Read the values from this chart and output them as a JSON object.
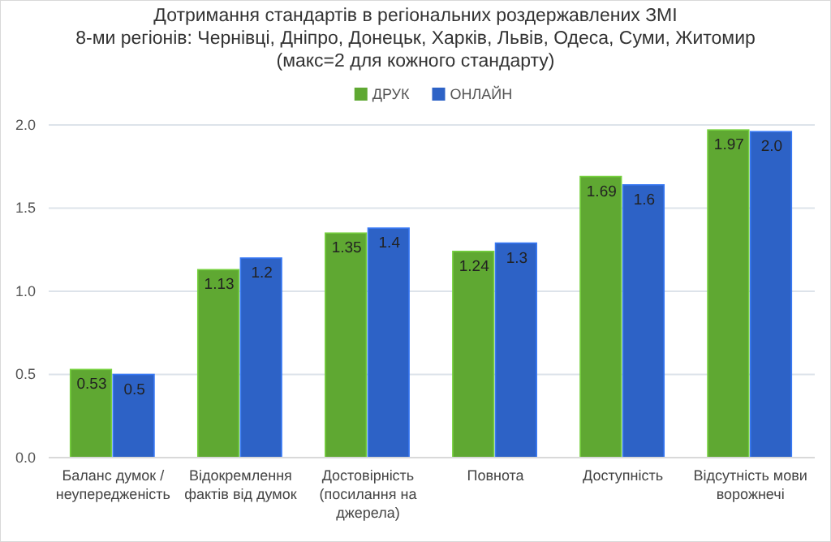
{
  "chart_data": {
    "type": "bar",
    "title": "Дотримання стандартів в регіональних роздержавлених ЗМІ\n8-ми регіонів: Чернівці, Дніпро, Донецьк, Харків, Львів, Одеса, Суми, Житомир\n(макс=2 для кожного стандарту)",
    "categories": [
      "Баланс думок /\nнеупередженість",
      "Відокремлення\nфактів від думок",
      "Достовірність\n(посилання на\nджерела)",
      "Повнота",
      "Доступність",
      "Відсутність мови\nворожнечі"
    ],
    "series": [
      {
        "name": "ДРУК",
        "color": "#5fa832",
        "values": [
          0.53,
          1.13,
          1.35,
          1.24,
          1.69,
          1.97
        ],
        "value_labels": [
          "0.53",
          "1.13",
          "1.35",
          "1.24",
          "1.69",
          "1.97"
        ]
      },
      {
        "name": "ОНЛАЙН",
        "color": "#2d62c6",
        "values": [
          0.5,
          1.2,
          1.38,
          1.29,
          1.64,
          1.96
        ],
        "value_labels": [
          "0.5",
          "1.2",
          "1.4",
          "1.3",
          "1.6",
          "2.0"
        ]
      }
    ],
    "ylim": [
      0,
      2
    ],
    "yticks": [
      {
        "value": 0,
        "label": "0.0"
      },
      {
        "value": 0.5,
        "label": "0.5"
      },
      {
        "value": 1,
        "label": "1.0"
      },
      {
        "value": 1.5,
        "label": "1.5"
      },
      {
        "value": 2,
        "label": "2.0"
      }
    ],
    "grid": "y",
    "legend": "top"
  }
}
